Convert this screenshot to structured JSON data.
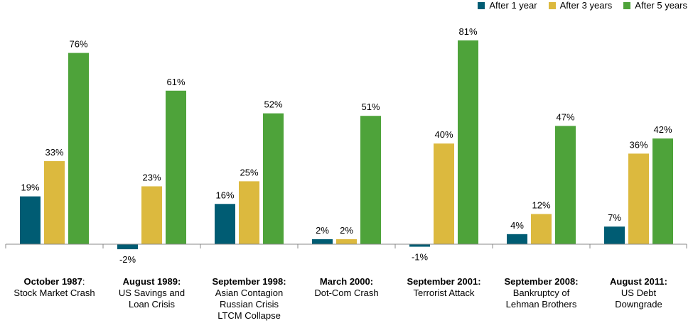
{
  "chart_data": {
    "type": "bar",
    "legend_position": "top-right",
    "grid": false,
    "ylim": [
      -3,
      85
    ],
    "series": [
      {
        "name": "After 1 year",
        "color": "#005c73",
        "values": [
          19,
          -2,
          16,
          2,
          -1,
          4,
          7
        ]
      },
      {
        "name": "After 3 years",
        "color": "#dcb93e",
        "values": [
          33,
          23,
          25,
          2,
          40,
          12,
          36
        ]
      },
      {
        "name": "After 5 years",
        "color": "#4ea33a",
        "values": [
          76,
          61,
          52,
          51,
          81,
          47,
          42
        ]
      }
    ],
    "value_labels": [
      [
        "19%",
        "33%",
        "76%"
      ],
      [
        "-2%",
        "23%",
        "61%"
      ],
      [
        "16%",
        "25%",
        "52%"
      ],
      [
        "2%",
        "2%",
        "51%"
      ],
      [
        "-1%",
        "40%",
        "81%"
      ],
      [
        "4%",
        "12%",
        "47%"
      ],
      [
        "7%",
        "36%",
        "42%"
      ]
    ],
    "categories": [
      {
        "title": "October 1987",
        "title_suffix": ":",
        "lines": [
          "Stock Market Crash"
        ]
      },
      {
        "title": "August 1989:",
        "title_suffix": "",
        "lines": [
          "US Savings and",
          "Loan Crisis"
        ]
      },
      {
        "title": "September 1998:",
        "title_suffix": "",
        "lines": [
          "Asian Contagion",
          "Russian Crisis",
          "LTCM Collapse"
        ]
      },
      {
        "title": "March 2000:",
        "title_suffix": "",
        "lines": [
          "Dot-Com Crash"
        ]
      },
      {
        "title": "September 2001:",
        "title_suffix": "",
        "lines": [
          "Terrorist Attack"
        ]
      },
      {
        "title": "September 2008:",
        "title_suffix": "",
        "lines": [
          "Bankruptcy of",
          "Lehman Brothers"
        ]
      },
      {
        "title": "August 2011:",
        "title_suffix": "",
        "lines": [
          "US Debt",
          "Downgrade"
        ]
      }
    ]
  }
}
